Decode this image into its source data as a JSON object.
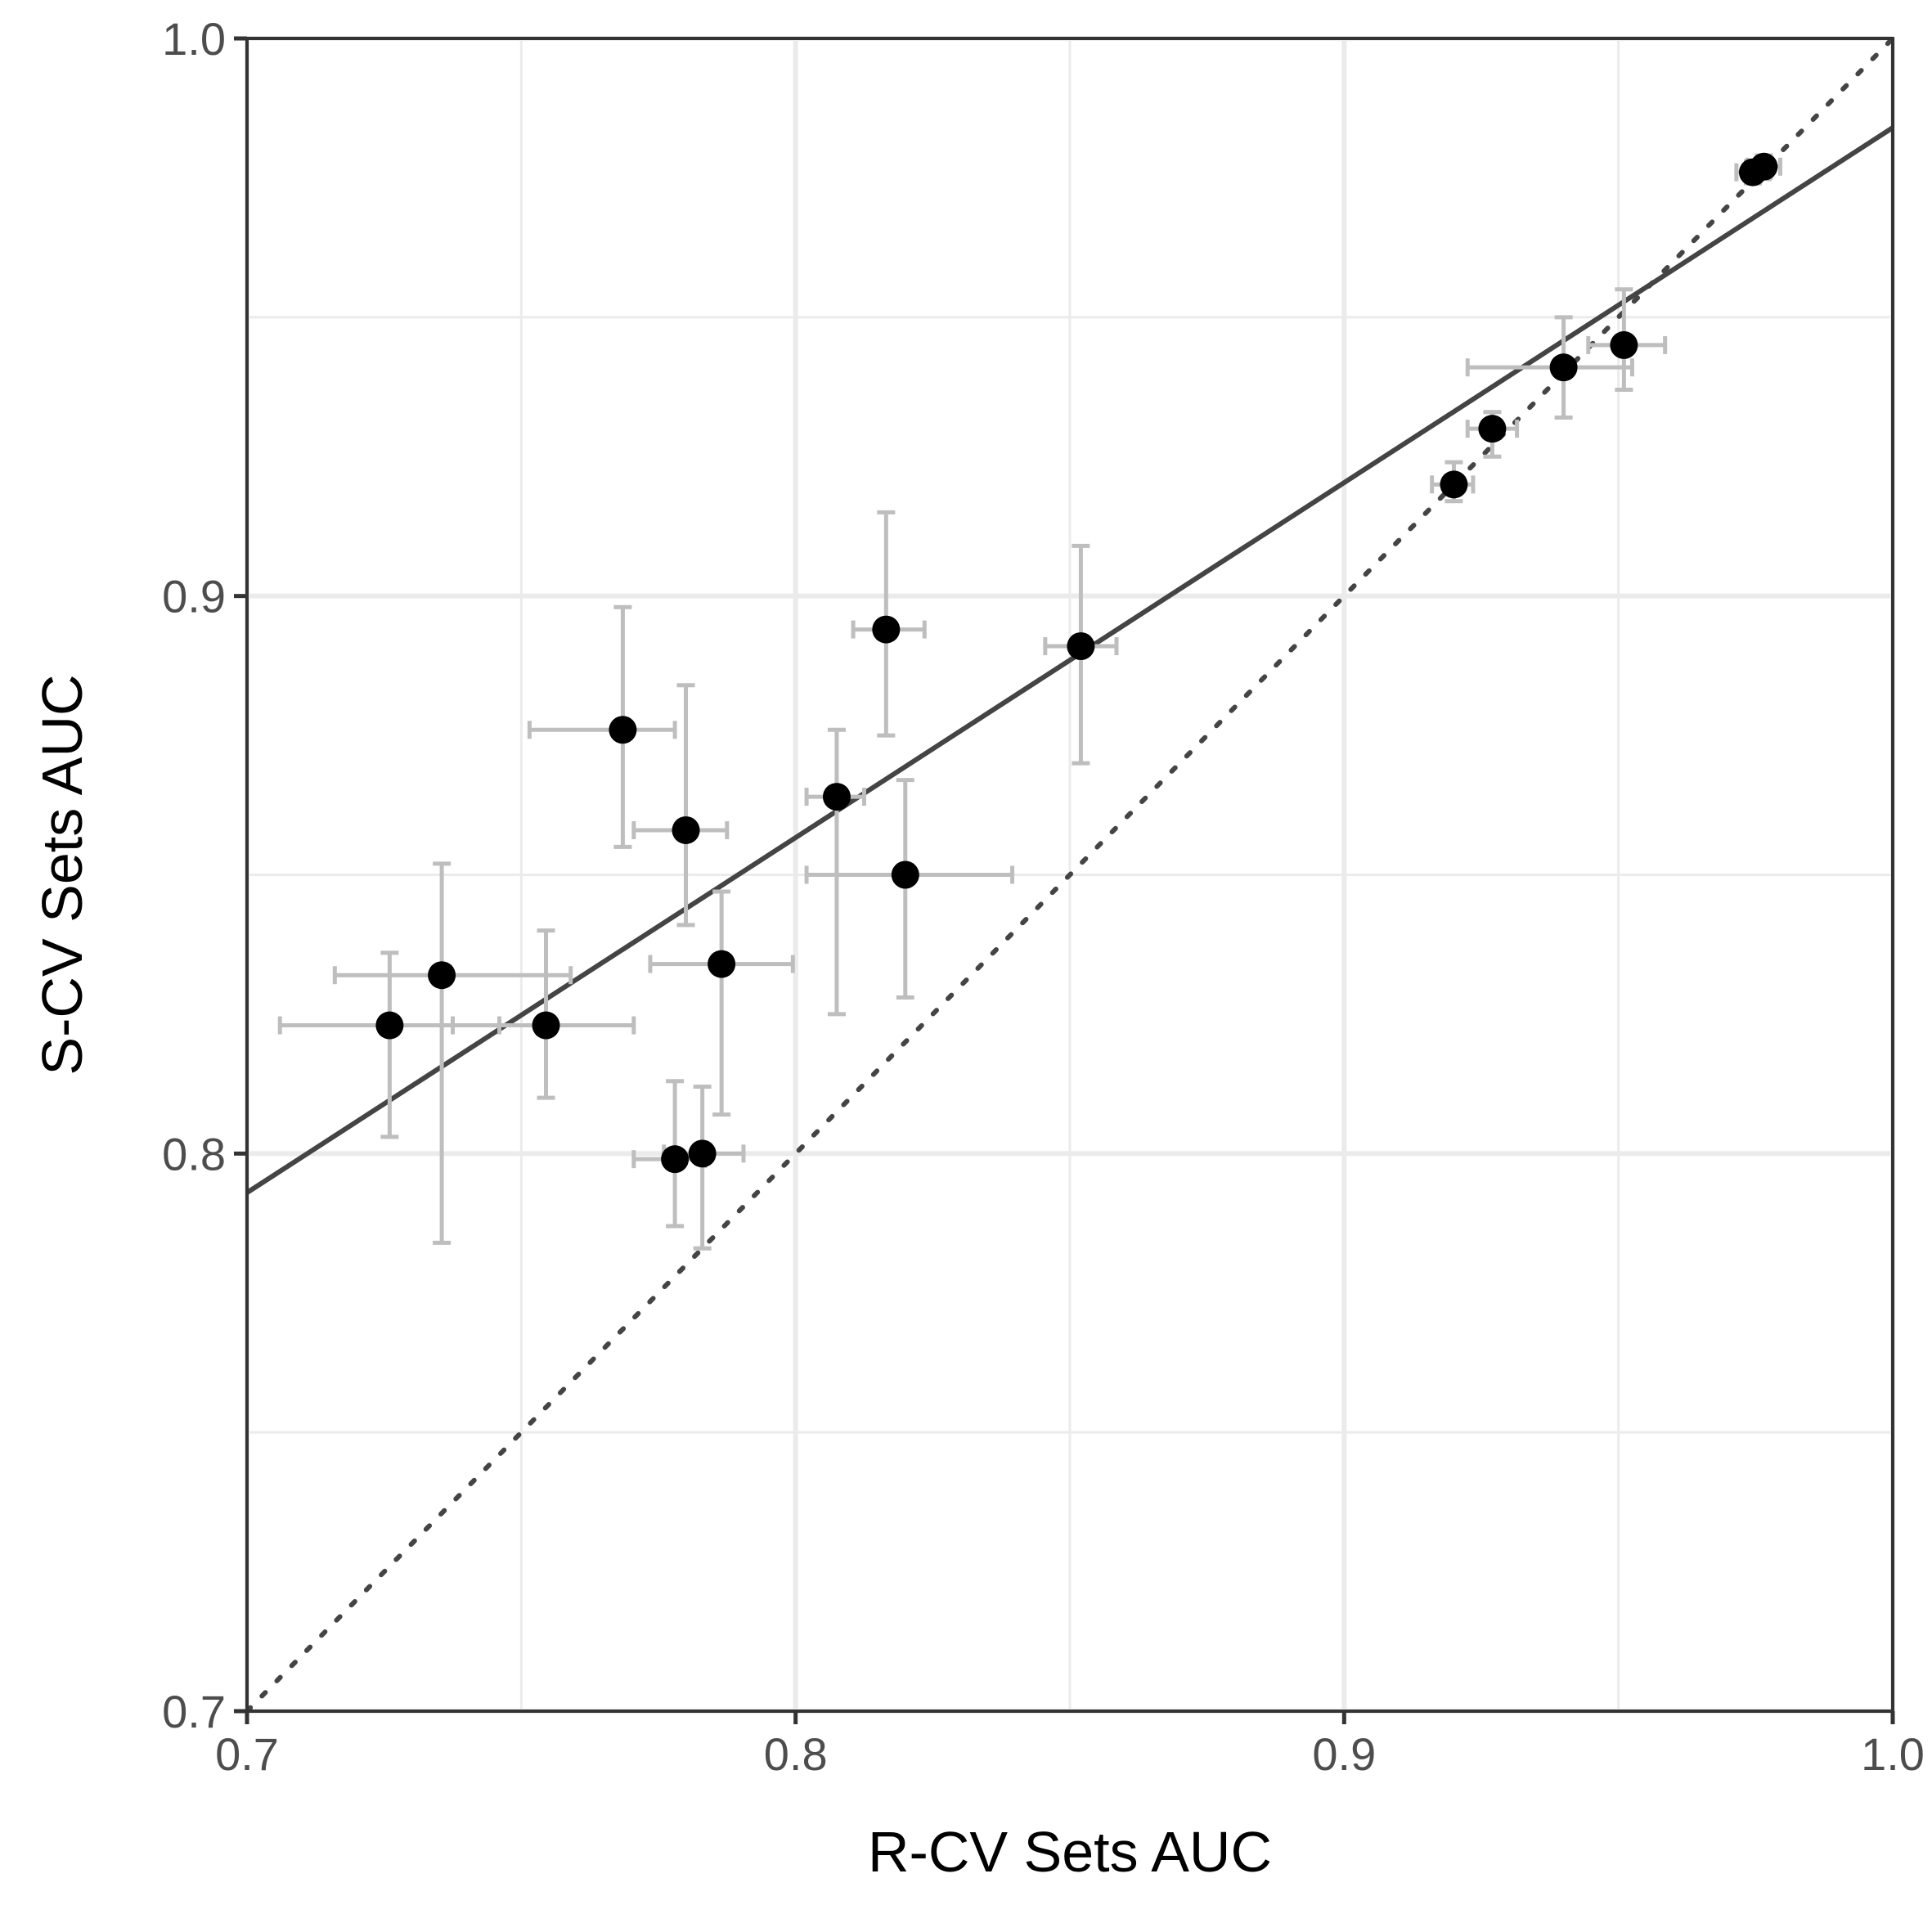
{
  "chart_data": {
    "type": "scatter",
    "title": "",
    "xlabel": "R-CV Sets AUC",
    "ylabel": "S-CV Sets AUC",
    "xlim": [
      0.7,
      1.0
    ],
    "ylim": [
      0.7,
      1.0
    ],
    "x_ticks": [
      0.7,
      0.8,
      0.9,
      1.0
    ],
    "y_ticks": [
      0.7,
      0.8,
      0.9,
      1.0
    ],
    "x_tick_labels": [
      "0.7",
      "0.8",
      "0.9",
      "1.0"
    ],
    "y_tick_labels": [
      "0.7",
      "0.8",
      "0.9",
      "1.0"
    ],
    "grid": true,
    "legend": "none",
    "points": [
      {
        "x": 0.726,
        "y": 0.823,
        "xerr": [
          0.706,
          0.746
        ],
        "yerr": [
          0.803,
          0.836
        ]
      },
      {
        "x": 0.7355,
        "y": 0.832,
        "xerr": [
          0.716,
          0.759
        ],
        "yerr": [
          0.784,
          0.852
        ]
      },
      {
        "x": 0.7545,
        "y": 0.823,
        "xerr": [
          0.7375,
          0.7705
        ],
        "yerr": [
          0.81,
          0.84
        ]
      },
      {
        "x": 0.7685,
        "y": 0.876,
        "xerr": [
          0.7515,
          0.778
        ],
        "yerr": [
          0.855,
          0.898
        ]
      },
      {
        "x": 0.78,
        "y": 0.858,
        "xerr": [
          0.7705,
          0.7875
        ],
        "yerr": [
          0.841,
          0.884
        ]
      },
      {
        "x": 0.7865,
        "y": 0.834,
        "xerr": [
          0.7735,
          0.7995
        ],
        "yerr": [
          0.807,
          0.847
        ]
      },
      {
        "x": 0.778,
        "y": 0.799,
        "xerr": [
          0.7705,
          0.7835
        ],
        "yerr": [
          0.787,
          0.813
        ]
      },
      {
        "x": 0.783,
        "y": 0.8,
        "xerr": [
          0.776,
          0.7905
        ],
        "yerr": [
          0.783,
          0.812
        ]
      },
      {
        "x": 0.8075,
        "y": 0.864,
        "xerr": [
          0.802,
          0.8125
        ],
        "yerr": [
          0.825,
          0.876
        ]
      },
      {
        "x": 0.8165,
        "y": 0.894,
        "xerr": [
          0.8105,
          0.8235
        ],
        "yerr": [
          0.875,
          0.915
        ]
      },
      {
        "x": 0.82,
        "y": 0.85,
        "xerr": [
          0.802,
          0.8395
        ],
        "yerr": [
          0.828,
          0.867
        ]
      },
      {
        "x": 0.852,
        "y": 0.891,
        "xerr": [
          0.8455,
          0.8585
        ],
        "yerr": [
          0.87,
          0.909
        ]
      },
      {
        "x": 0.92,
        "y": 0.92,
        "xerr": [
          0.916,
          0.9235
        ],
        "yerr": [
          0.917,
          0.924
        ]
      },
      {
        "x": 0.927,
        "y": 0.93,
        "xerr": [
          0.9225,
          0.9315
        ],
        "yerr": [
          0.925,
          0.933
        ]
      },
      {
        "x": 0.94,
        "y": 0.941,
        "xerr": [
          0.9225,
          0.9525
        ],
        "yerr": [
          0.932,
          0.95
        ]
      },
      {
        "x": 0.951,
        "y": 0.945,
        "xerr": [
          0.9445,
          0.9585
        ],
        "yerr": [
          0.937,
          0.955
        ]
      },
      {
        "x": 0.9745,
        "y": 0.976,
        "xerr": [
          0.9715,
          0.9775
        ],
        "yerr": [
          0.974,
          0.978
        ]
      },
      {
        "x": 0.9765,
        "y": 0.977,
        "xerr": [
          0.9735,
          0.9795
        ],
        "yerr": [
          0.975,
          0.979
        ]
      }
    ],
    "reference_line": {
      "style": "dotted",
      "slope": 1,
      "intercept": 0
    },
    "fit_line": {
      "style": "solid",
      "x": [
        0.7,
        1.0
      ],
      "y": [
        0.793,
        0.984
      ]
    },
    "colors": {
      "points": "#000000",
      "error_bars": "#bebebe",
      "fit_line": "#444444",
      "reference_line": "#444444",
      "grid": "#ebebeb",
      "axis": "#333333"
    }
  }
}
